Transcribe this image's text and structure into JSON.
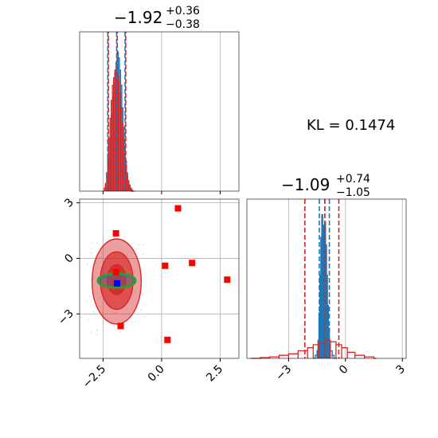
{
  "chart_data": [
    {
      "type": "histogram",
      "panel": "top-left",
      "title": {
        "median": "−1.92",
        "plus": "+0.36",
        "minus": "−0.38"
      },
      "xlim": [
        -3.5,
        3.3
      ],
      "grid": true,
      "quantiles": [
        -2.3,
        -1.92,
        -1.56
      ],
      "series": [
        {
          "name": "",
          "color": "#1f77b4",
          "x": [
            -2.35,
            -2.3,
            -2.25,
            -2.2,
            -2.15,
            -2.1,
            -2.05,
            -2.0,
            -1.95,
            -1.9,
            -1.85,
            -1.8,
            -1.75,
            -1.7,
            -1.65,
            -1.6,
            -1.55,
            -1.5,
            -1.45,
            -1.4,
            -1.35,
            -1.3
          ],
          "y": [
            0.03,
            0.1,
            0.2,
            0.35,
            0.5,
            0.62,
            0.72,
            0.78,
            0.85,
            0.92,
            0.88,
            0.8,
            0.7,
            0.55,
            0.42,
            0.3,
            0.2,
            0.12,
            0.07,
            0.04,
            0.02,
            0.0
          ]
        },
        {
          "name": "",
          "color": "#d62728",
          "x": [
            -2.45,
            -2.4,
            -2.35,
            -2.3,
            -2.25,
            -2.2,
            -2.15,
            -2.1,
            -2.05,
            -2.0,
            -1.95,
            -1.9,
            -1.85,
            -1.8,
            -1.75,
            -1.7,
            -1.65,
            -1.6,
            -1.55,
            -1.5,
            -1.45,
            -1.4,
            -1.35,
            -1.3,
            -1.25
          ],
          "y": [
            0.02,
            0.05,
            0.12,
            0.22,
            0.35,
            0.48,
            0.6,
            0.7,
            0.75,
            0.8,
            0.78,
            0.76,
            0.72,
            0.65,
            0.55,
            0.45,
            0.35,
            0.25,
            0.17,
            0.1,
            0.06,
            0.04,
            0.02,
            0.01,
            0.0
          ]
        }
      ]
    },
    {
      "type": "scatter",
      "panel": "bottom-left",
      "xlim": [
        -3.5,
        3.3
      ],
      "ylim": [
        -5.4,
        3.2
      ],
      "xticks": [
        "−2.5",
        "0.0",
        "2.5"
      ],
      "yticks": [
        "3",
        "0",
        "−3"
      ],
      "grid": true,
      "markers": [
        {
          "x": 0.7,
          "y": 2.7,
          "color": "#ff0000"
        },
        {
          "x": -1.95,
          "y": 1.35,
          "color": "#ff0000"
        },
        {
          "x": 0.15,
          "y": -0.4,
          "color": "#ff0000"
        },
        {
          "x": 1.3,
          "y": -0.25,
          "color": "#ff0000"
        },
        {
          "x": 2.8,
          "y": -1.15,
          "color": "#ff0000"
        },
        {
          "x": -1.95,
          "y": -0.75,
          "color": "#ff0000"
        },
        {
          "x": -1.75,
          "y": -3.65,
          "color": "#ff0000"
        },
        {
          "x": 0.25,
          "y": -4.4,
          "color": "#ff0000"
        },
        {
          "x": -1.9,
          "y": -1.35,
          "color": "#0000ff"
        }
      ],
      "contours": [
        {
          "series": "red",
          "color": "#d62728",
          "levels": [
            {
              "cx": -1.92,
              "cy": -1.25,
              "rx": 1.05,
              "ry": 2.3,
              "fill_opacity": 0.45
            },
            {
              "cx": -1.92,
              "cy": -1.2,
              "rx": 0.7,
              "ry": 1.55,
              "fill_opacity": 0.65
            },
            {
              "cx": -1.92,
              "cy": -1.15,
              "rx": 0.4,
              "ry": 0.8,
              "fill_opacity": 0.85
            }
          ]
        },
        {
          "series": "blue",
          "color": "#1f77b4",
          "levels": [
            {
              "cx": -1.9,
              "cy": -1.25,
              "rx": 0.75,
              "ry": 0.35,
              "fill_opacity": 0.3
            }
          ]
        },
        {
          "series": "green",
          "color": "#2ca02c",
          "levels": [
            {
              "cx": -1.92,
              "cy": -1.2,
              "rx": 0.8,
              "ry": 0.38,
              "fill_opacity": 0.0
            }
          ]
        }
      ]
    },
    {
      "type": "histogram",
      "panel": "bottom-right",
      "title": {
        "median": "−1.09",
        "plus": "+0.74",
        "minus": "−1.05"
      },
      "xlim": [
        -5.2,
        3.2
      ],
      "xticks": [
        "−3",
        "0",
        "3"
      ],
      "grid": true,
      "series": [
        {
          "name": "",
          "color": "#1f77b4",
          "quantiles": [
            -1.38,
            -1.09,
            -0.85
          ],
          "x": [
            -1.7,
            -1.6,
            -1.5,
            -1.45,
            -1.4,
            -1.35,
            -1.3,
            -1.25,
            -1.2,
            -1.15,
            -1.1,
            -1.05,
            -1.0,
            -0.95,
            -0.9,
            -0.85,
            -0.8,
            -0.7,
            -0.6
          ],
          "y": [
            0.0,
            0.02,
            0.05,
            0.12,
            0.3,
            0.55,
            0.8,
            0.95,
            0.88,
            0.7,
            0.9,
            0.75,
            0.55,
            0.35,
            0.2,
            0.1,
            0.05,
            0.02,
            0.0
          ]
        },
        {
          "name": "",
          "color": "#d62728",
          "quantiles": [
            -2.14,
            -1.09,
            -0.35
          ],
          "x": [
            -5.0,
            -4.5,
            -4.0,
            -3.5,
            -3.0,
            -2.5,
            -2.0,
            -1.7,
            -1.4,
            -1.1,
            -0.8,
            -0.5,
            -0.2,
            0.1,
            0.5,
            1.0,
            1.5
          ],
          "y": [
            0.0,
            0.005,
            0.01,
            0.02,
            0.03,
            0.05,
            0.07,
            0.09,
            0.1,
            0.12,
            0.11,
            0.09,
            0.07,
            0.04,
            0.02,
            0.01,
            0.0
          ]
        }
      ]
    }
  ],
  "annotation": {
    "kl_text": "KL = 0.1474"
  }
}
